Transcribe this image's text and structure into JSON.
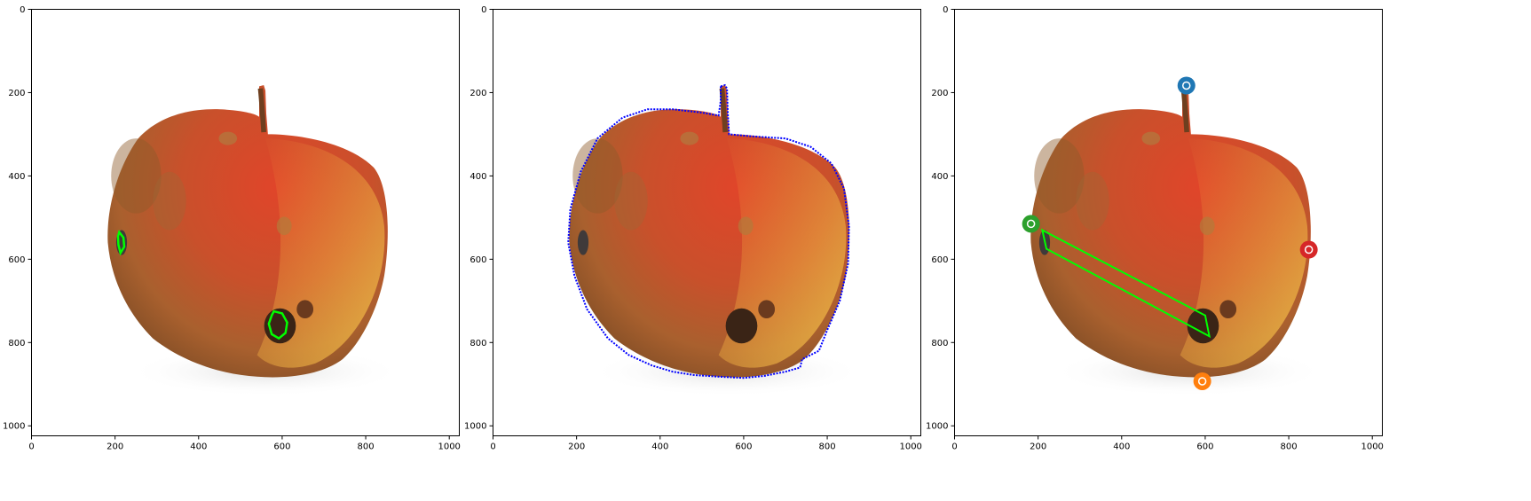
{
  "figure": {
    "image_extent": [
      0,
      1024
    ],
    "ticks": [
      0,
      200,
      400,
      600,
      800,
      1000
    ],
    "tick_labels": [
      "0",
      "200",
      "400",
      "600",
      "800",
      "1000"
    ],
    "colors": {
      "mask_contour": "#00ff00",
      "silhouette_contour": "#0000ff",
      "box_outline": "#00ff00",
      "point_1": "#1f77b4",
      "point_2": "#ff7f0e",
      "point_3": "#2ca02c",
      "point_4": "#d62728"
    }
  },
  "panels": [
    {
      "name": "green-mask-contours",
      "overlay": "green contours around two dark rot spots",
      "contours": [
        [
          [
            210,
            535
          ],
          [
            220,
            548
          ],
          [
            222,
            570
          ],
          [
            213,
            585
          ],
          [
            208,
            565
          ],
          [
            207,
            545
          ]
        ],
        [
          [
            580,
            725
          ],
          [
            600,
            730
          ],
          [
            612,
            752
          ],
          [
            608,
            777
          ],
          [
            592,
            790
          ],
          [
            575,
            780
          ],
          [
            568,
            755
          ],
          [
            575,
            735
          ]
        ]
      ]
    },
    {
      "name": "blue-apple-outline",
      "overlay": "blue dotted outline around the full apple",
      "outline": [
        [
          545,
          185
        ],
        [
          555,
          182
        ],
        [
          560,
          190
        ],
        [
          562,
          250
        ],
        [
          565,
          300
        ],
        [
          620,
          305
        ],
        [
          700,
          310
        ],
        [
          760,
          330
        ],
        [
          810,
          370
        ],
        [
          840,
          430
        ],
        [
          852,
          520
        ],
        [
          850,
          610
        ],
        [
          830,
          700
        ],
        [
          800,
          770
        ],
        [
          780,
          820
        ],
        [
          760,
          830
        ],
        [
          740,
          840
        ],
        [
          735,
          860
        ],
        [
          700,
          870
        ],
        [
          650,
          880
        ],
        [
          600,
          885
        ],
        [
          540,
          882
        ],
        [
          480,
          878
        ],
        [
          430,
          870
        ],
        [
          380,
          855
        ],
        [
          325,
          830
        ],
        [
          275,
          790
        ],
        [
          225,
          720
        ],
        [
          195,
          640
        ],
        [
          180,
          560
        ],
        [
          185,
          480
        ],
        [
          210,
          390
        ],
        [
          250,
          310
        ],
        [
          310,
          260
        ],
        [
          370,
          240
        ],
        [
          430,
          240
        ],
        [
          500,
          248
        ],
        [
          540,
          255
        ],
        [
          545,
          220
        ]
      ]
    },
    {
      "name": "green-box-and-points",
      "overlay": "rotated green rectangle with four colored points",
      "box": [
        [
          210,
          530
        ],
        [
          600,
          735
        ],
        [
          610,
          785
        ],
        [
          220,
          575
        ]
      ],
      "points": [
        {
          "x": 555,
          "y": 183,
          "color_key": "point_1"
        },
        {
          "x": 593,
          "y": 893,
          "color_key": "point_2"
        },
        {
          "x": 183,
          "y": 515,
          "color_key": "point_3"
        },
        {
          "x": 848,
          "y": 577,
          "color_key": "point_4"
        }
      ]
    }
  ]
}
